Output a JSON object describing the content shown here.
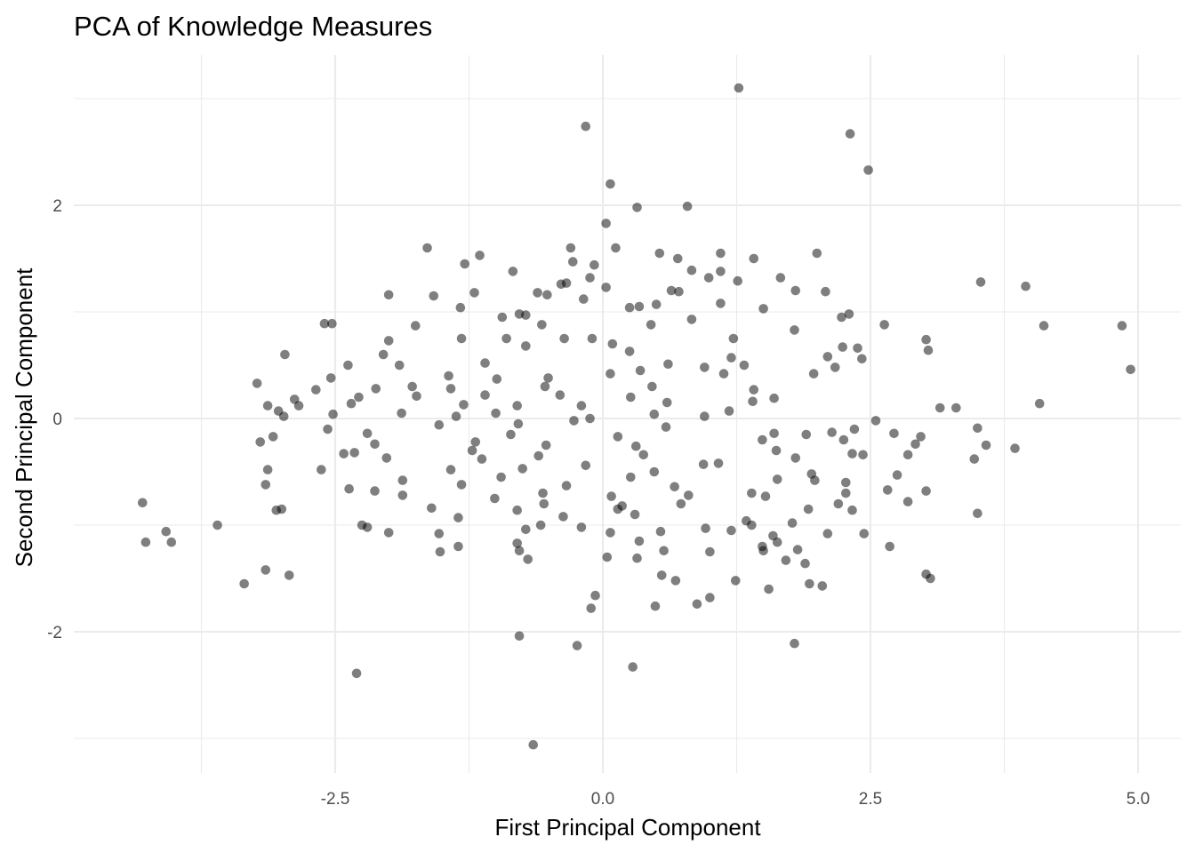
{
  "chart_data": {
    "type": "scatter",
    "title": "PCA of Knowledge Measures",
    "xlabel": "First Principal Component",
    "ylabel": "Second Principal Component",
    "xlim": [
      -4.9,
      5.4
    ],
    "ylim": [
      -3.34,
      3.2
    ],
    "x_ticks": [
      -2.5,
      0.0,
      2.5,
      5.0
    ],
    "x_tick_labels": [
      "-2.5",
      "0.0",
      "2.5",
      "5.0"
    ],
    "y_ticks": [
      -2,
      0,
      2
    ],
    "y_tick_labels": [
      "-2",
      "0",
      "2"
    ],
    "grid": true,
    "point_color": "#000000",
    "point_alpha": 0.5,
    "points": [
      [
        1.27,
        3.1
      ],
      [
        -0.16,
        2.74
      ],
      [
        2.31,
        2.67
      ],
      [
        2.48,
        2.33
      ],
      [
        0.07,
        2.2
      ],
      [
        0.32,
        1.98
      ],
      [
        0.79,
        1.99
      ],
      [
        0.03,
        1.83
      ],
      [
        -1.64,
        1.6
      ],
      [
        -0.3,
        1.6
      ],
      [
        0.12,
        1.6
      ],
      [
        0.53,
        1.55
      ],
      [
        1.1,
        1.55
      ],
      [
        2.0,
        1.55
      ],
      [
        -1.15,
        1.53
      ],
      [
        0.7,
        1.5
      ],
      [
        1.41,
        1.5
      ],
      [
        -0.28,
        1.47
      ],
      [
        -1.29,
        1.45
      ],
      [
        -0.08,
        1.44
      ],
      [
        0.83,
        1.39
      ],
      [
        -0.84,
        1.38
      ],
      [
        1.1,
        1.38
      ],
      [
        -0.12,
        1.32
      ],
      [
        0.99,
        1.32
      ],
      [
        1.66,
        1.32
      ],
      [
        3.53,
        1.28
      ],
      [
        -0.34,
        1.27
      ],
      [
        -0.39,
        1.26
      ],
      [
        0.03,
        1.23
      ],
      [
        1.26,
        1.29
      ],
      [
        0.64,
        1.2
      ],
      [
        0.71,
        1.19
      ],
      [
        1.8,
        1.2
      ],
      [
        2.08,
        1.19
      ],
      [
        -0.61,
        1.18
      ],
      [
        -1.2,
        1.18
      ],
      [
        3.95,
        1.24
      ],
      [
        -2.0,
        1.16
      ],
      [
        -1.58,
        1.15
      ],
      [
        -0.52,
        1.16
      ],
      [
        -0.18,
        1.12
      ],
      [
        1.1,
        1.08
      ],
      [
        0.34,
        1.05
      ],
      [
        -1.33,
        1.04
      ],
      [
        0.5,
        1.07
      ],
      [
        0.25,
        1.04
      ],
      [
        -0.78,
        0.98
      ],
      [
        -0.94,
        0.95
      ],
      [
        -0.72,
        0.97
      ],
      [
        0.83,
        0.93
      ],
      [
        1.5,
        1.03
      ],
      [
        2.3,
        0.98
      ],
      [
        2.23,
        0.95
      ],
      [
        -2.6,
        0.89
      ],
      [
        -2.53,
        0.89
      ],
      [
        -0.57,
        0.88
      ],
      [
        0.45,
        0.88
      ],
      [
        2.63,
        0.88
      ],
      [
        4.12,
        0.87
      ],
      [
        4.85,
        0.87
      ],
      [
        1.79,
        0.83
      ],
      [
        -1.75,
        0.87
      ],
      [
        -1.32,
        0.75
      ],
      [
        -0.9,
        0.75
      ],
      [
        -0.36,
        0.75
      ],
      [
        -0.1,
        0.75
      ],
      [
        0.09,
        0.7
      ],
      [
        -2.0,
        0.73
      ],
      [
        3.02,
        0.74
      ],
      [
        1.22,
        0.75
      ],
      [
        2.24,
        0.67
      ],
      [
        2.38,
        0.66
      ],
      [
        3.04,
        0.64
      ],
      [
        -2.97,
        0.6
      ],
      [
        -2.05,
        0.6
      ],
      [
        -0.72,
        0.68
      ],
      [
        0.25,
        0.63
      ],
      [
        1.2,
        0.57
      ],
      [
        2.1,
        0.58
      ],
      [
        2.42,
        0.56
      ],
      [
        4.93,
        0.46
      ],
      [
        -2.38,
        0.5
      ],
      [
        -1.9,
        0.5
      ],
      [
        -1.1,
        0.52
      ],
      [
        0.61,
        0.51
      ],
      [
        0.95,
        0.48
      ],
      [
        1.32,
        0.5
      ],
      [
        2.17,
        0.48
      ],
      [
        1.97,
        0.42
      ],
      [
        -1.44,
        0.4
      ],
      [
        -0.99,
        0.37
      ],
      [
        -0.51,
        0.38
      ],
      [
        0.07,
        0.42
      ],
      [
        0.35,
        0.45
      ],
      [
        1.13,
        0.42
      ],
      [
        -2.54,
        0.38
      ],
      [
        -3.23,
        0.33
      ],
      [
        -2.12,
        0.28
      ],
      [
        -1.78,
        0.3
      ],
      [
        -1.42,
        0.28
      ],
      [
        -0.54,
        0.3
      ],
      [
        0.46,
        0.3
      ],
      [
        1.41,
        0.27
      ],
      [
        -2.68,
        0.27
      ],
      [
        -2.28,
        0.2
      ],
      [
        -1.74,
        0.21
      ],
      [
        -1.1,
        0.22
      ],
      [
        -0.4,
        0.22
      ],
      [
        0.26,
        0.2
      ],
      [
        1.6,
        0.19
      ],
      [
        1.4,
        0.16
      ],
      [
        -2.88,
        0.18
      ],
      [
        -3.13,
        0.12
      ],
      [
        -2.84,
        0.12
      ],
      [
        -2.35,
        0.14
      ],
      [
        -1.3,
        0.13
      ],
      [
        -0.8,
        0.12
      ],
      [
        -0.2,
        0.12
      ],
      [
        0.6,
        0.15
      ],
      [
        4.08,
        0.14
      ],
      [
        3.15,
        0.1
      ],
      [
        3.3,
        0.1
      ],
      [
        -3.03,
        0.07
      ],
      [
        -1.88,
        0.05
      ],
      [
        -1.0,
        0.05
      ],
      [
        -0.12,
        0.0
      ],
      [
        0.48,
        0.04
      ],
      [
        1.18,
        0.07
      ],
      [
        -2.98,
        0.02
      ],
      [
        -2.52,
        0.04
      ],
      [
        -1.37,
        0.02
      ],
      [
        -0.27,
        -0.02
      ],
      [
        0.95,
        0.02
      ],
      [
        2.55,
        -0.02
      ],
      [
        -1.53,
        -0.06
      ],
      [
        -0.79,
        -0.05
      ],
      [
        0.59,
        -0.08
      ],
      [
        1.6,
        -0.14
      ],
      [
        3.5,
        -0.09
      ],
      [
        -2.57,
        -0.1
      ],
      [
        -2.2,
        -0.14
      ],
      [
        -0.86,
        -0.15
      ],
      [
        0.14,
        -0.17
      ],
      [
        1.9,
        -0.15
      ],
      [
        2.14,
        -0.13
      ],
      [
        2.35,
        -0.1
      ],
      [
        2.72,
        -0.14
      ],
      [
        2.97,
        -0.17
      ],
      [
        -3.2,
        -0.22
      ],
      [
        -3.08,
        -0.17
      ],
      [
        -2.13,
        -0.24
      ],
      [
        -1.19,
        -0.22
      ],
      [
        -0.53,
        -0.25
      ],
      [
        0.31,
        -0.26
      ],
      [
        1.49,
        -0.2
      ],
      [
        2.25,
        -0.2
      ],
      [
        2.92,
        -0.24
      ],
      [
        3.58,
        -0.25
      ],
      [
        3.85,
        -0.28
      ],
      [
        -2.42,
        -0.33
      ],
      [
        -2.32,
        -0.32
      ],
      [
        -1.22,
        -0.3
      ],
      [
        -0.6,
        -0.35
      ],
      [
        0.38,
        -0.34
      ],
      [
        1.62,
        -0.3
      ],
      [
        1.8,
        -0.37
      ],
      [
        2.33,
        -0.33
      ],
      [
        2.43,
        -0.34
      ],
      [
        2.85,
        -0.34
      ],
      [
        3.47,
        -0.38
      ],
      [
        -2.02,
        -0.37
      ],
      [
        -1.13,
        -0.38
      ],
      [
        -0.16,
        -0.44
      ],
      [
        0.94,
        -0.43
      ],
      [
        -3.13,
        -0.48
      ],
      [
        -2.63,
        -0.48
      ],
      [
        -1.42,
        -0.48
      ],
      [
        -0.75,
        -0.47
      ],
      [
        0.48,
        -0.5
      ],
      [
        1.08,
        -0.42
      ],
      [
        1.95,
        -0.52
      ],
      [
        2.75,
        -0.53
      ],
      [
        -1.87,
        -0.58
      ],
      [
        -0.95,
        -0.55
      ],
      [
        0.26,
        -0.55
      ],
      [
        1.63,
        -0.57
      ],
      [
        2.27,
        -0.6
      ],
      [
        -3.15,
        -0.62
      ],
      [
        -1.32,
        -0.62
      ],
      [
        -0.34,
        -0.63
      ],
      [
        0.67,
        -0.64
      ],
      [
        1.98,
        -0.58
      ],
      [
        -2.37,
        -0.66
      ],
      [
        -2.13,
        -0.68
      ],
      [
        -0.56,
        -0.7
      ],
      [
        0.08,
        -0.73
      ],
      [
        0.8,
        -0.72
      ],
      [
        2.27,
        -0.7
      ],
      [
        2.66,
        -0.67
      ],
      [
        3.02,
        -0.68
      ],
      [
        -1.87,
        -0.72
      ],
      [
        -1.01,
        -0.75
      ],
      [
        1.39,
        -0.7
      ],
      [
        1.52,
        -0.73
      ],
      [
        -4.3,
        -0.79
      ],
      [
        -1.6,
        -0.84
      ],
      [
        -0.55,
        -0.8
      ],
      [
        0.18,
        -0.82
      ],
      [
        0.73,
        -0.8
      ],
      [
        2.2,
        -0.8
      ],
      [
        2.85,
        -0.78
      ],
      [
        -3.0,
        -0.85
      ],
      [
        -3.05,
        -0.86
      ],
      [
        -0.8,
        -0.86
      ],
      [
        0.14,
        -0.85
      ],
      [
        1.92,
        -0.85
      ],
      [
        2.33,
        -0.86
      ],
      [
        3.5,
        -0.89
      ],
      [
        -1.35,
        -0.93
      ],
      [
        -0.37,
        -0.92
      ],
      [
        0.3,
        -0.9
      ],
      [
        1.34,
        -0.96
      ],
      [
        1.77,
        -0.98
      ],
      [
        -2.25,
        -1.0
      ],
      [
        -2.2,
        -1.02
      ],
      [
        -1.53,
        -1.08
      ],
      [
        -0.58,
        -1.0
      ],
      [
        -0.2,
        -1.02
      ],
      [
        0.54,
        -1.06
      ],
      [
        0.96,
        -1.03
      ],
      [
        1.39,
        -1.0
      ],
      [
        2.44,
        -1.08
      ],
      [
        -3.6,
        -1.0
      ],
      [
        -4.08,
        -1.06
      ],
      [
        -2.0,
        -1.07
      ],
      [
        -0.72,
        -1.04
      ],
      [
        0.07,
        -1.07
      ],
      [
        1.2,
        -1.05
      ],
      [
        1.59,
        -1.1
      ],
      [
        2.1,
        -1.08
      ],
      [
        -4.27,
        -1.16
      ],
      [
        -4.03,
        -1.16
      ],
      [
        -0.8,
        -1.17
      ],
      [
        0.34,
        -1.15
      ],
      [
        1.49,
        -1.2
      ],
      [
        1.63,
        -1.16
      ],
      [
        2.68,
        -1.2
      ],
      [
        -1.52,
        -1.25
      ],
      [
        -1.35,
        -1.2
      ],
      [
        -0.78,
        -1.24
      ],
      [
        0.57,
        -1.24
      ],
      [
        1.0,
        -1.25
      ],
      [
        1.82,
        -1.23
      ],
      [
        -0.7,
        -1.32
      ],
      [
        0.04,
        -1.3
      ],
      [
        0.32,
        -1.31
      ],
      [
        1.5,
        -1.24
      ],
      [
        1.71,
        -1.33
      ],
      [
        1.89,
        -1.36
      ],
      [
        -3.15,
        -1.42
      ],
      [
        -2.93,
        -1.47
      ],
      [
        0.55,
        -1.47
      ],
      [
        0.68,
        -1.52
      ],
      [
        3.06,
        -1.5
      ],
      [
        3.02,
        -1.46
      ],
      [
        -3.35,
        -1.55
      ],
      [
        1.24,
        -1.52
      ],
      [
        1.55,
        -1.6
      ],
      [
        1.93,
        -1.55
      ],
      [
        2.05,
        -1.57
      ],
      [
        -0.07,
        -1.66
      ],
      [
        1.0,
        -1.68
      ],
      [
        0.88,
        -1.74
      ],
      [
        0.49,
        -1.76
      ],
      [
        -0.11,
        -1.78
      ],
      [
        -0.78,
        -2.04
      ],
      [
        1.79,
        -2.11
      ],
      [
        -0.24,
        -2.13
      ],
      [
        0.28,
        -2.33
      ],
      [
        -2.3,
        -2.39
      ],
      [
        -0.65,
        -3.06
      ]
    ]
  }
}
